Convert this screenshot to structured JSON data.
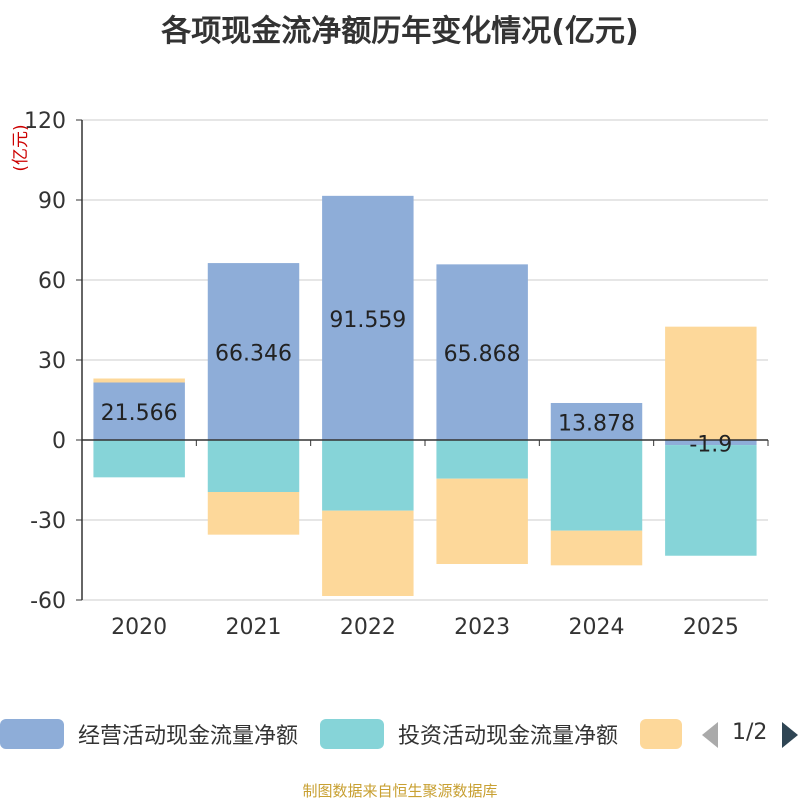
{
  "chart_data": {
    "type": "bar",
    "stacked": true,
    "title": "各项现金流净额历年变化情况(亿元)",
    "ylabel": "(亿元)",
    "xlabel": "",
    "ylim": [
      -60,
      120
    ],
    "yticks": [
      120,
      90,
      60,
      30,
      0,
      -30,
      -60
    ],
    "categories": [
      "2020",
      "2021",
      "2022",
      "2023",
      "2024",
      "2025"
    ],
    "series": [
      {
        "name": "经营活动现金流量净额",
        "color": "#8eadd8",
        "values": [
          21.566,
          66.346,
          91.559,
          65.868,
          13.878,
          -1.9
        ],
        "labels": [
          "21.566",
          "66.346",
          "91.559",
          "65.868",
          "13.878",
          "-1.9"
        ]
      },
      {
        "name": "投资活动现金流量净额",
        "color": "#86d4d8",
        "values": [
          -14,
          -19.5,
          -26.5,
          -14.5,
          -34,
          -41.5
        ]
      },
      {
        "name": "",
        "color": "#fdd89a",
        "values": [
          1.5,
          -16,
          -32,
          -32,
          -13,
          42.5
        ]
      }
    ],
    "legend_position": "bottom"
  },
  "legend": {
    "items": [
      {
        "label": "经营活动现金流量净额",
        "color": "#8eadd8"
      },
      {
        "label": "投资活动现金流量净额",
        "color": "#86d4d8"
      },
      {
        "label": "",
        "color": "#fdd89a"
      }
    ],
    "page_text": "1/2"
  },
  "source": "制图数据来自恒生聚源数据库"
}
